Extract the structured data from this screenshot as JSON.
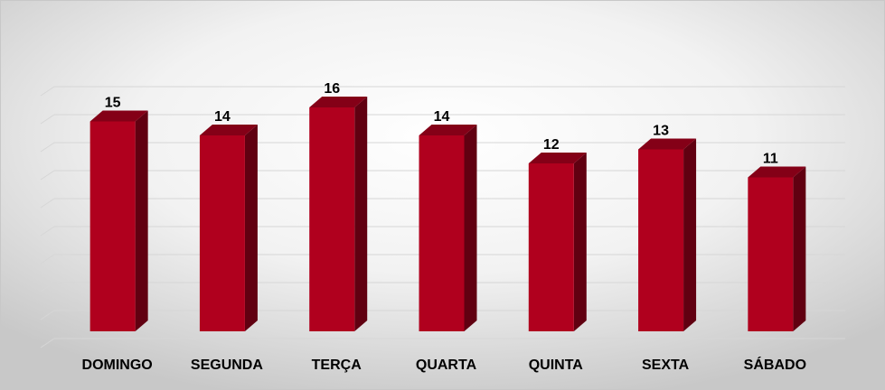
{
  "chart_data": {
    "type": "bar3d",
    "categories": [
      "DOMINGO",
      "SEGUNDA",
      "TERÇA",
      "QUARTA",
      "QUINTA",
      "SEXTA",
      "SÁBADO"
    ],
    "values": [
      15,
      14,
      16,
      14,
      12,
      13,
      11
    ],
    "color": "#b0001e",
    "ylim": [
      0,
      18
    ],
    "yticks": [
      0,
      2,
      4,
      6,
      8,
      10,
      12,
      14,
      16,
      18
    ],
    "grid": true
  }
}
